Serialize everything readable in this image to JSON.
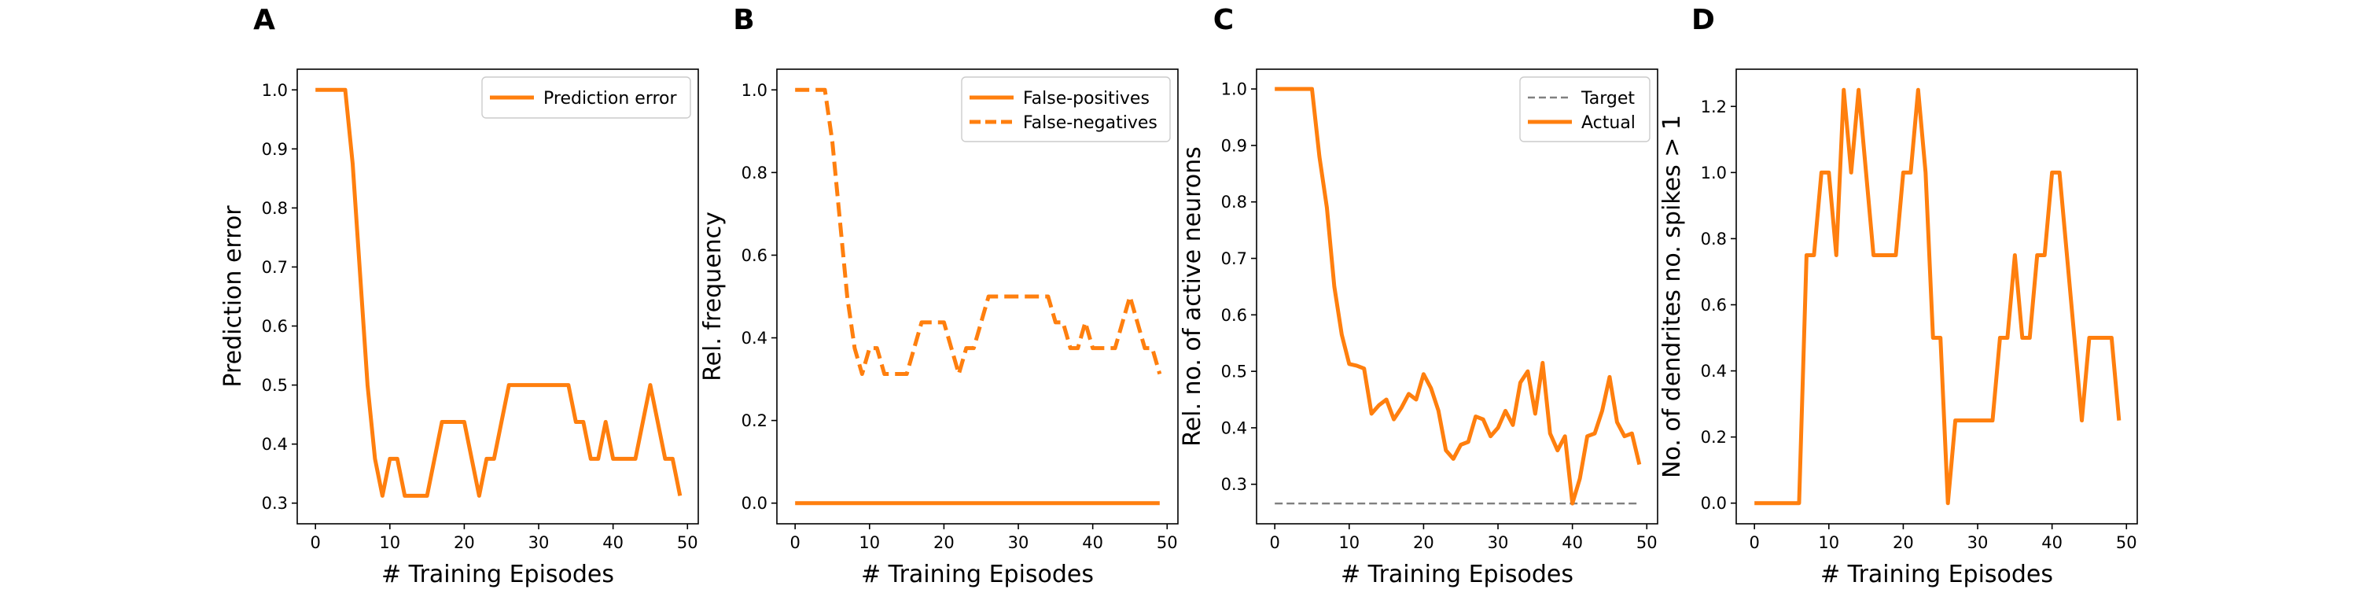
{
  "colors": {
    "series": "#ff7f0e",
    "target": "#808080",
    "axes": "#000000",
    "legend_border": "#cccccc"
  },
  "chart_data": [
    {
      "panel": "A",
      "type": "line",
      "xlabel": "# Training Episodes",
      "ylabel": "Prediction error",
      "xlim": [
        -2.45,
        51.45
      ],
      "ylim": [
        0.265,
        1.035
      ],
      "xticks": [
        0,
        10,
        20,
        30,
        40,
        50
      ],
      "yticks": [
        0.3,
        0.4,
        0.5,
        0.6,
        0.7,
        0.8,
        0.9,
        1.0
      ],
      "ytick_labels": [
        "0.3",
        "0.4",
        "0.5",
        "0.6",
        "0.7",
        "0.8",
        "0.9",
        "1.0"
      ],
      "legend_position": "upper right",
      "grid": false,
      "series": [
        {
          "name": "Prediction error",
          "style": "solid",
          "x": [
            0,
            1,
            2,
            3,
            4,
            5,
            6,
            7,
            8,
            9,
            10,
            11,
            12,
            13,
            14,
            15,
            16,
            17,
            18,
            19,
            20,
            21,
            22,
            23,
            24,
            25,
            26,
            27,
            28,
            29,
            30,
            31,
            32,
            33,
            34,
            35,
            36,
            37,
            38,
            39,
            40,
            41,
            42,
            43,
            44,
            45,
            46,
            47,
            48,
            49
          ],
          "y": [
            1.0,
            1.0,
            1.0,
            1.0,
            1.0,
            0.875,
            0.6875,
            0.5,
            0.375,
            0.3125,
            0.375,
            0.375,
            0.3125,
            0.3125,
            0.3125,
            0.3125,
            0.375,
            0.4375,
            0.4375,
            0.4375,
            0.4375,
            0.375,
            0.3125,
            0.375,
            0.375,
            0.4375,
            0.5,
            0.5,
            0.5,
            0.5,
            0.5,
            0.5,
            0.5,
            0.5,
            0.5,
            0.4375,
            0.4375,
            0.375,
            0.375,
            0.4375,
            0.375,
            0.375,
            0.375,
            0.375,
            0.4375,
            0.5,
            0.4375,
            0.375,
            0.375,
            0.3125
          ]
        }
      ]
    },
    {
      "panel": "B",
      "type": "line",
      "xlabel": "# Training Episodes",
      "ylabel": "Rel. frequency",
      "xlim": [
        -2.45,
        51.45
      ],
      "ylim": [
        -0.05,
        1.05
      ],
      "xticks": [
        0,
        10,
        20,
        30,
        40,
        50
      ],
      "yticks": [
        0.0,
        0.2,
        0.4,
        0.6,
        0.8,
        1.0
      ],
      "ytick_labels": [
        "0.0",
        "0.2",
        "0.4",
        "0.6",
        "0.8",
        "1.0"
      ],
      "legend_position": "upper right",
      "grid": false,
      "series": [
        {
          "name": "False-positives",
          "style": "solid",
          "x": [
            0,
            1,
            2,
            3,
            4,
            5,
            6,
            7,
            8,
            9,
            10,
            11,
            12,
            13,
            14,
            15,
            16,
            17,
            18,
            19,
            20,
            21,
            22,
            23,
            24,
            25,
            26,
            27,
            28,
            29,
            30,
            31,
            32,
            33,
            34,
            35,
            36,
            37,
            38,
            39,
            40,
            41,
            42,
            43,
            44,
            45,
            46,
            47,
            48,
            49
          ],
          "y": [
            0,
            0,
            0,
            0,
            0,
            0,
            0,
            0,
            0,
            0,
            0,
            0,
            0,
            0,
            0,
            0,
            0,
            0,
            0,
            0,
            0,
            0,
            0,
            0,
            0,
            0,
            0,
            0,
            0,
            0,
            0,
            0,
            0,
            0,
            0,
            0,
            0,
            0,
            0,
            0,
            0,
            0,
            0,
            0,
            0,
            0,
            0,
            0,
            0,
            0
          ]
        },
        {
          "name": "False-negatives",
          "style": "dashed",
          "x": [
            0,
            1,
            2,
            3,
            4,
            5,
            6,
            7,
            8,
            9,
            10,
            11,
            12,
            13,
            14,
            15,
            16,
            17,
            18,
            19,
            20,
            21,
            22,
            23,
            24,
            25,
            26,
            27,
            28,
            29,
            30,
            31,
            32,
            33,
            34,
            35,
            36,
            37,
            38,
            39,
            40,
            41,
            42,
            43,
            44,
            45,
            46,
            47,
            48,
            49
          ],
          "y": [
            1.0,
            1.0,
            1.0,
            1.0,
            1.0,
            0.875,
            0.6875,
            0.5,
            0.375,
            0.3125,
            0.375,
            0.375,
            0.3125,
            0.3125,
            0.3125,
            0.3125,
            0.375,
            0.4375,
            0.4375,
            0.4375,
            0.4375,
            0.375,
            0.3125,
            0.375,
            0.375,
            0.4375,
            0.5,
            0.5,
            0.5,
            0.5,
            0.5,
            0.5,
            0.5,
            0.5,
            0.5,
            0.4375,
            0.4375,
            0.375,
            0.375,
            0.4375,
            0.375,
            0.375,
            0.375,
            0.375,
            0.4375,
            0.5,
            0.4375,
            0.375,
            0.375,
            0.3125
          ]
        }
      ]
    },
    {
      "panel": "C",
      "type": "line",
      "xlabel": "# Training Episodes",
      "ylabel": "Rel. no. of active neurons",
      "xlim": [
        -2.45,
        51.45
      ],
      "ylim": [
        0.23,
        1.035
      ],
      "xticks": [
        0,
        10,
        20,
        30,
        40,
        50
      ],
      "yticks": [
        0.3,
        0.4,
        0.5,
        0.6,
        0.7,
        0.8,
        0.9,
        1.0
      ],
      "ytick_labels": [
        "0.3",
        "0.4",
        "0.5",
        "0.6",
        "0.7",
        "0.8",
        "0.9",
        "1.0"
      ],
      "legend_position": "upper right",
      "grid": false,
      "series": [
        {
          "name": "Target",
          "style": "dashed-thin",
          "x": [
            0,
            49
          ],
          "y": [
            0.266,
            0.266
          ]
        },
        {
          "name": "Actual",
          "style": "solid",
          "x": [
            0,
            1,
            2,
            3,
            4,
            5,
            6,
            7,
            8,
            9,
            10,
            11,
            12,
            13,
            14,
            15,
            16,
            17,
            18,
            19,
            20,
            21,
            22,
            23,
            24,
            25,
            26,
            27,
            28,
            29,
            30,
            31,
            32,
            33,
            34,
            35,
            36,
            37,
            38,
            39,
            40,
            41,
            42,
            43,
            44,
            45,
            46,
            47,
            48,
            49
          ],
          "y": [
            1.0,
            1.0,
            1.0,
            1.0,
            1.0,
            1.0,
            0.88,
            0.79,
            0.65,
            0.565,
            0.513,
            0.51,
            0.505,
            0.425,
            0.44,
            0.45,
            0.415,
            0.435,
            0.46,
            0.45,
            0.495,
            0.47,
            0.43,
            0.36,
            0.345,
            0.37,
            0.375,
            0.42,
            0.415,
            0.385,
            0.4,
            0.43,
            0.405,
            0.48,
            0.5,
            0.425,
            0.515,
            0.39,
            0.36,
            0.385,
            0.266,
            0.31,
            0.385,
            0.39,
            0.43,
            0.49,
            0.41,
            0.385,
            0.39,
            0.335
          ]
        }
      ]
    },
    {
      "panel": "D",
      "type": "line",
      "xlabel": "# Training Episodes",
      "ylabel": "No. of dendrites no. spikes > 1",
      "xlim": [
        -2.45,
        51.45
      ],
      "ylim": [
        -0.0625,
        1.3125
      ],
      "xticks": [
        0,
        10,
        20,
        30,
        40,
        50
      ],
      "yticks": [
        0.0,
        0.2,
        0.4,
        0.6,
        0.8,
        1.0,
        1.2
      ],
      "ytick_labels": [
        "0.0",
        "0.2",
        "0.4",
        "0.6",
        "0.8",
        "1.0",
        "1.2"
      ],
      "legend_position": "none",
      "grid": false,
      "series": [
        {
          "name": "",
          "style": "solid",
          "x": [
            0,
            1,
            2,
            3,
            4,
            5,
            6,
            7,
            8,
            9,
            10,
            11,
            12,
            13,
            14,
            15,
            16,
            17,
            18,
            19,
            20,
            21,
            22,
            23,
            24,
            25,
            26,
            27,
            28,
            29,
            30,
            31,
            32,
            33,
            34,
            35,
            36,
            37,
            38,
            39,
            40,
            41,
            42,
            43,
            44,
            45,
            46,
            47,
            48,
            49
          ],
          "y": [
            0,
            0,
            0,
            0,
            0,
            0,
            0,
            0.75,
            0.75,
            1.0,
            1.0,
            0.75,
            1.25,
            1.0,
            1.25,
            1.0,
            0.75,
            0.75,
            0.75,
            0.75,
            1.0,
            1.0,
            1.25,
            1.0,
            0.5,
            0.5,
            0,
            0.25,
            0.25,
            0.25,
            0.25,
            0.25,
            0.25,
            0.5,
            0.5,
            0.75,
            0.5,
            0.5,
            0.75,
            0.75,
            1.0,
            1.0,
            0.75,
            0.5,
            0.25,
            0.5,
            0.5,
            0.5,
            0.5,
            0.25
          ]
        }
      ]
    }
  ]
}
